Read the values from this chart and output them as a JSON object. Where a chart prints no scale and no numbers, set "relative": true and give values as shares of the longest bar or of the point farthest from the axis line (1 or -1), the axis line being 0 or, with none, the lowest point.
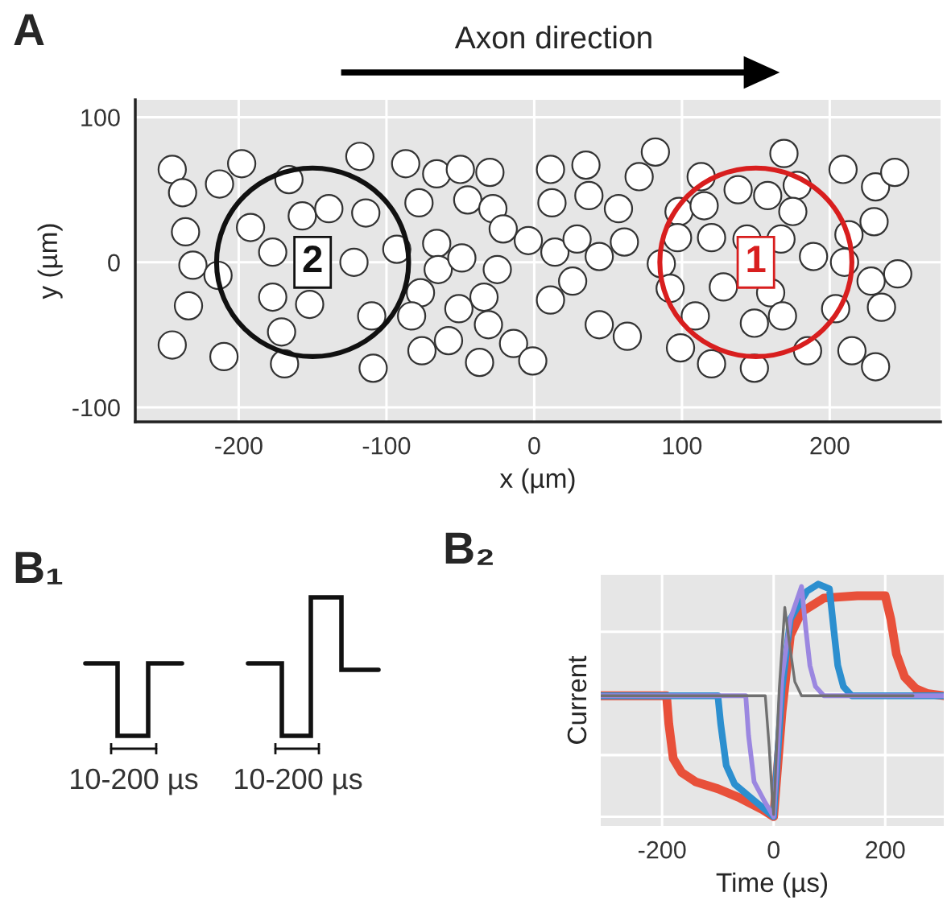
{
  "chart_data": [
    {
      "type": "scatter",
      "title": "A",
      "xlabel": "x (µm)",
      "ylabel": "y (µm)",
      "color": "#ffffff",
      "marker": "circle",
      "grid": true,
      "xlim": [
        -270,
        275
      ],
      "ylim": [
        -110,
        112
      ],
      "xticks": [
        -200,
        -100,
        0,
        100,
        200
      ],
      "yticks": [
        -100,
        0,
        100
      ],
      "annotations": [
        "Axon direction",
        {
          "text": "1",
          "x": 150,
          "y": 0
        },
        {
          "text": "2",
          "x": -150,
          "y": 0
        }
      ],
      "x": [
        -245,
        -238,
        -213,
        -198,
        -166,
        -118,
        -87,
        -66,
        -50,
        -30,
        -78,
        -45,
        -28,
        -21,
        -4,
        -236,
        -192,
        -157,
        -139,
        -114,
        -177,
        -122,
        -93,
        -66,
        -65,
        -49,
        -25,
        -231,
        -214,
        -234,
        -177,
        -152,
        -110,
        -77,
        -83,
        -51,
        -34,
        -31,
        -58,
        -76,
        -37,
        -14,
        -1,
        -245,
        -210,
        -171,
        -169,
        -109,
        11,
        35,
        82,
        71,
        12,
        37,
        57,
        14,
        29,
        44,
        61,
        26,
        11,
        44,
        63,
        113,
        98,
        115,
        138,
        158,
        178,
        169,
        175,
        97,
        120,
        144,
        167,
        189,
        86,
        92,
        128,
        160,
        210,
        213,
        230,
        209,
        231,
        244,
        228,
        246,
        235,
        204,
        109,
        149,
        168,
        99,
        120,
        149,
        185,
        215,
        231
      ],
      "values": [
        64,
        48,
        54,
        68,
        57,
        73,
        68,
        61,
        64,
        62,
        41,
        43,
        37,
        23,
        15,
        21,
        24,
        32,
        37,
        34,
        7,
        0,
        9,
        13,
        -5,
        3,
        -5,
        -2,
        -9,
        -30,
        -24,
        -29,
        -37,
        -21,
        -37,
        -32,
        -24,
        -43,
        -54,
        -61,
        -69,
        -56,
        -68,
        -57,
        -65,
        -48,
        -70,
        -73,
        64,
        67,
        76,
        59,
        41,
        46,
        37,
        7,
        16,
        4,
        14,
        -13,
        -26,
        -43,
        -51,
        59,
        35,
        39,
        50,
        46,
        53,
        75,
        35,
        17,
        17,
        16,
        16,
        4,
        -1,
        -18,
        -17,
        -21,
        0,
        19,
        28,
        64,
        52,
        62,
        -13,
        -8,
        -31,
        -32,
        -37,
        -42,
        -37,
        -59,
        -70,
        -73,
        -61,
        -61,
        -72
      ]
    },
    {
      "type": "other",
      "title": "B₁",
      "annotations": [
        "10-200 µs",
        "10-200 µs"
      ]
    },
    {
      "type": "line",
      "title": "B₂",
      "xlabel": "Time (µs)",
      "ylabel": "Current",
      "relative": true,
      "grid": true,
      "tick_labels": "x",
      "marker": "none",
      "line_style": "solid",
      "xlim": [
        -310,
        305
      ],
      "xticks": [
        -200,
        0,
        200
      ],
      "series": [
        {
          "color": "#e8503a",
          "x": [
            -310,
            -192,
            -188,
            -180,
            -165,
            -140,
            -100,
            -60,
            -20,
            0,
            15,
            30,
            50,
            90,
            150,
            200,
            210,
            220,
            235,
            255,
            275,
            305
          ],
          "values": [
            0.52,
            0.52,
            0.4,
            0.25,
            0.19,
            0.15,
            0.12,
            0.08,
            0.03,
            0,
            0.45,
            0.78,
            0.88,
            0.94,
            0.95,
            0.95,
            0.85,
            0.7,
            0.6,
            0.55,
            0.53,
            0.52
          ]
        },
        {
          "color": "#2c8fcf",
          "x": [
            -310,
            -100,
            -95,
            -85,
            -70,
            -40,
            -10,
            0,
            15,
            30,
            60,
            80,
            100,
            108,
            115,
            125,
            140,
            305
          ],
          "values": [
            0.52,
            0.52,
            0.4,
            0.22,
            0.14,
            0.08,
            0.02,
            0,
            0.55,
            0.85,
            0.97,
            1,
            0.98,
            0.8,
            0.65,
            0.56,
            0.52,
            0.52
          ]
        },
        {
          "color": "#9b87e0",
          "x": [
            -310,
            -50,
            -45,
            -35,
            -15,
            0,
            15,
            30,
            50,
            58,
            65,
            75,
            90,
            305
          ],
          "values": [
            0.52,
            0.52,
            0.35,
            0.15,
            0.06,
            0,
            0.6,
            0.85,
            0.99,
            0.8,
            0.65,
            0.56,
            0.52,
            0.52
          ]
        },
        {
          "color": "#707070",
          "x": [
            -310,
            -15,
            -8,
            -3,
            0,
            10,
            20,
            28,
            38,
            50,
            250
          ],
          "values": [
            0.52,
            0.52,
            0.3,
            0.1,
            0.01,
            0.55,
            0.9,
            0.75,
            0.58,
            0.52,
            0.52
          ]
        }
      ]
    }
  ]
}
